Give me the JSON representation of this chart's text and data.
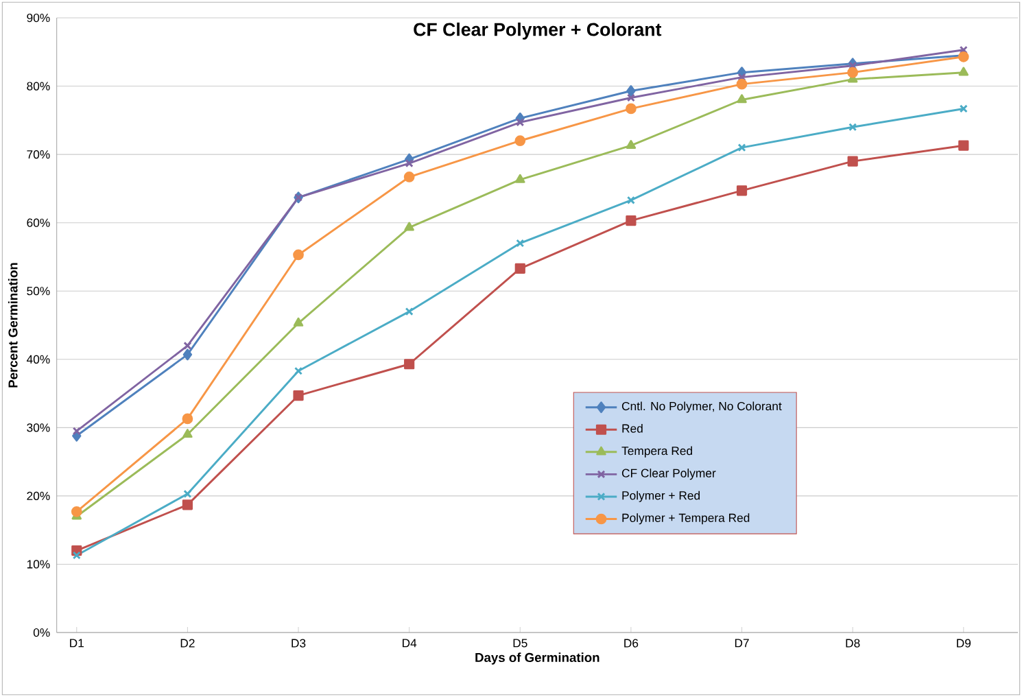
{
  "chart_data": {
    "type": "line",
    "title": "CF Clear Polymer + Colorant",
    "xlabel": "Days of Germination",
    "ylabel": "Percent Germination",
    "categories": [
      "D1",
      "D2",
      "D3",
      "D4",
      "D5",
      "D6",
      "D7",
      "D8",
      "D9"
    ],
    "ylim": [
      0,
      90
    ],
    "yticks": [
      {
        "value": 0,
        "label": "0%"
      },
      {
        "value": 10,
        "label": "10%"
      },
      {
        "value": 20,
        "label": "20%"
      },
      {
        "value": 30,
        "label": "30%"
      },
      {
        "value": 40,
        "label": "40%"
      },
      {
        "value": 50,
        "label": "50%"
      },
      {
        "value": 60,
        "label": "60%"
      },
      {
        "value": 70,
        "label": "70%"
      },
      {
        "value": 80,
        "label": "80%"
      },
      {
        "value": 90,
        "label": "90%"
      }
    ],
    "grid": "y",
    "legend": "bottom right",
    "line_style": "solid",
    "series": [
      {
        "name": "Cntl. No Polymer, No Colorant",
        "color": "#4f81bd",
        "marker": "diamond",
        "values": [
          28.8,
          40.7,
          63.7,
          69.3,
          75.3,
          79.3,
          82,
          83.3,
          84.5
        ]
      },
      {
        "name": "Red",
        "color": "#c0504d",
        "marker": "square",
        "values": [
          12,
          18.7,
          34.7,
          39.3,
          53.3,
          60.3,
          64.7,
          69,
          71.3
        ]
      },
      {
        "name": "Tempera Red",
        "color": "#9bbb59",
        "marker": "triangle",
        "values": [
          17,
          29,
          45.3,
          59.3,
          66.3,
          71.3,
          78,
          81,
          82
        ]
      },
      {
        "name": "CF Clear Polymer",
        "color": "#8064a2",
        "marker": "cross",
        "values": [
          29.5,
          42,
          63.7,
          68.7,
          74.7,
          78.3,
          81.3,
          83,
          85.3
        ]
      },
      {
        "name": "Polymer + Red",
        "color": "#4bacc6",
        "marker": "cross",
        "values": [
          11.3,
          20.3,
          38.3,
          47,
          57,
          63.3,
          71,
          74,
          76.7
        ]
      },
      {
        "name": "Polymer + Tempera Red",
        "color": "#f79646",
        "marker": "circle",
        "values": [
          17.7,
          31.3,
          55.3,
          66.7,
          72,
          76.7,
          80.3,
          82,
          84.3
        ]
      }
    ]
  }
}
